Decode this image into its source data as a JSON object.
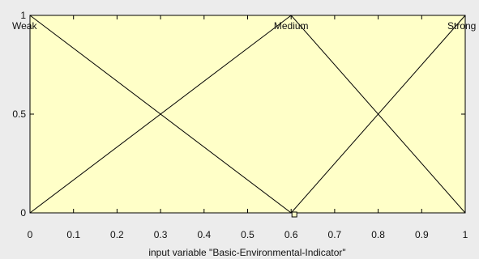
{
  "chart_data": {
    "type": "line",
    "xlabel": "input variable \"Basic-Environmental-Indicator\"",
    "ylabel": "",
    "xlim": [
      0,
      1
    ],
    "ylim": [
      0,
      1
    ],
    "x_ticks": [
      "0",
      "0.1",
      "0.2",
      "0.3",
      "0.4",
      "0.5",
      "0.6",
      "0.7",
      "0.8",
      "0.9",
      "1"
    ],
    "y_ticks": [
      "0",
      "0.5",
      "1"
    ],
    "grid": false,
    "colors": {
      "plot_background": "#ffffc8",
      "figure_background": "#ececec",
      "line": "#000000"
    },
    "series": [
      {
        "name": "Weak",
        "x": [
          0,
          0.6
        ],
        "y": [
          1,
          0
        ],
        "label_x": 0
      },
      {
        "name": "Medium",
        "x": [
          0,
          0.6,
          1
        ],
        "y": [
          0,
          1,
          0
        ],
        "label_x": 0.6
      },
      {
        "name": "Strong",
        "x": [
          0.6,
          1
        ],
        "y": [
          0,
          1
        ],
        "label_x": 1
      }
    ],
    "selected_marker": {
      "x": 0.6,
      "y": 0
    }
  }
}
